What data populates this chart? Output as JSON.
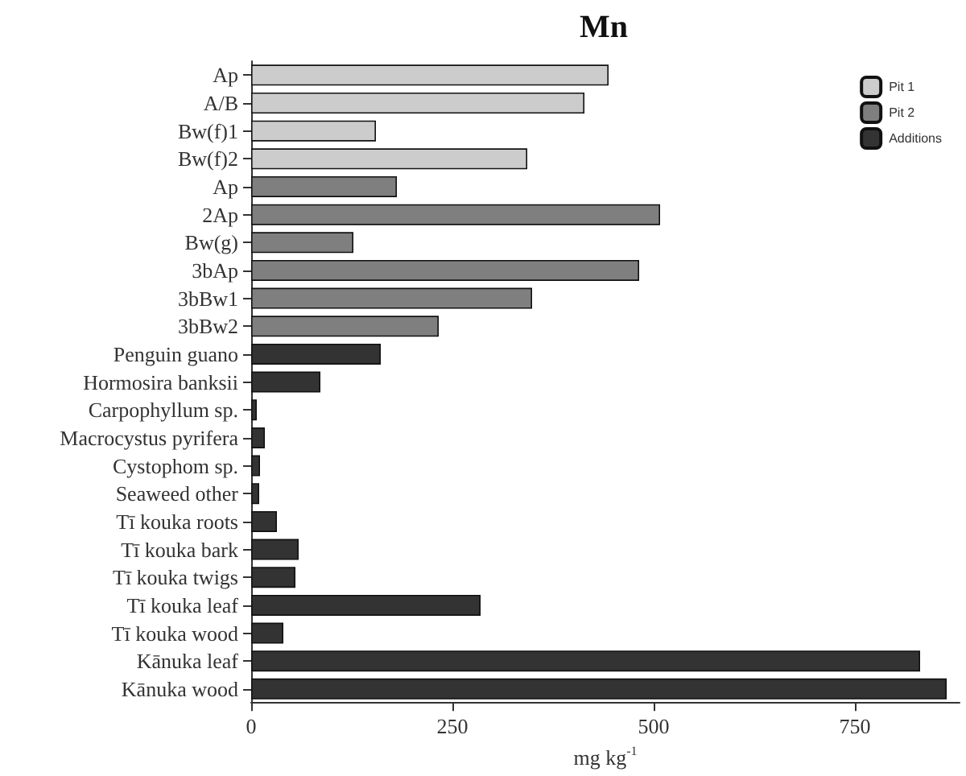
{
  "chart_data": {
    "type": "bar",
    "orientation": "horizontal",
    "title": "Mn",
    "xlabel": "mg kg$^{-1}$",
    "categories": [
      "Ap",
      "A/B",
      "Bw(f)1",
      "Bw(f)2",
      "Ap",
      "2Ap",
      "Bw(g)",
      "3bAp",
      "3bBw1",
      "3bBw2",
      "Penguin guano",
      "Hormosira banksii",
      "Carpophyllum sp.",
      "Macrocystus pyrifera",
      "Cystophom sp.",
      "Seaweed other",
      "Tī kouka roots",
      "Tī kouka bark",
      "Tī kouka twigs",
      "Tī kouka leaf",
      "Tī kouka wood",
      "Kānuka leaf",
      "Kānuka wood"
    ],
    "series": [
      {
        "name": "Pit 1",
        "color": "#cccccc",
        "values": [
          444,
          414,
          155,
          343,
          null,
          null,
          null,
          null,
          null,
          null,
          null,
          null,
          null,
          null,
          null,
          null,
          null,
          null,
          null,
          null,
          null,
          null,
          null
        ]
      },
      {
        "name": "Pit 2",
        "color": "#7f7f7f",
        "values": [
          null,
          null,
          null,
          null,
          181,
          508,
          127,
          482,
          349,
          233,
          null,
          null,
          null,
          null,
          null,
          null,
          null,
          null,
          null,
          null,
          null,
          null,
          null
        ]
      },
      {
        "name": "Additions",
        "color": "#333333",
        "values": [
          null,
          null,
          null,
          null,
          null,
          null,
          null,
          null,
          null,
          null,
          161,
          86,
          7,
          17,
          11,
          10,
          32,
          59,
          55,
          285,
          40,
          831,
          864
        ]
      }
    ],
    "xlim": [
      0,
      880
    ],
    "xticks": [
      0,
      250,
      500,
      750
    ],
    "grid": false,
    "legend": "top right"
  }
}
